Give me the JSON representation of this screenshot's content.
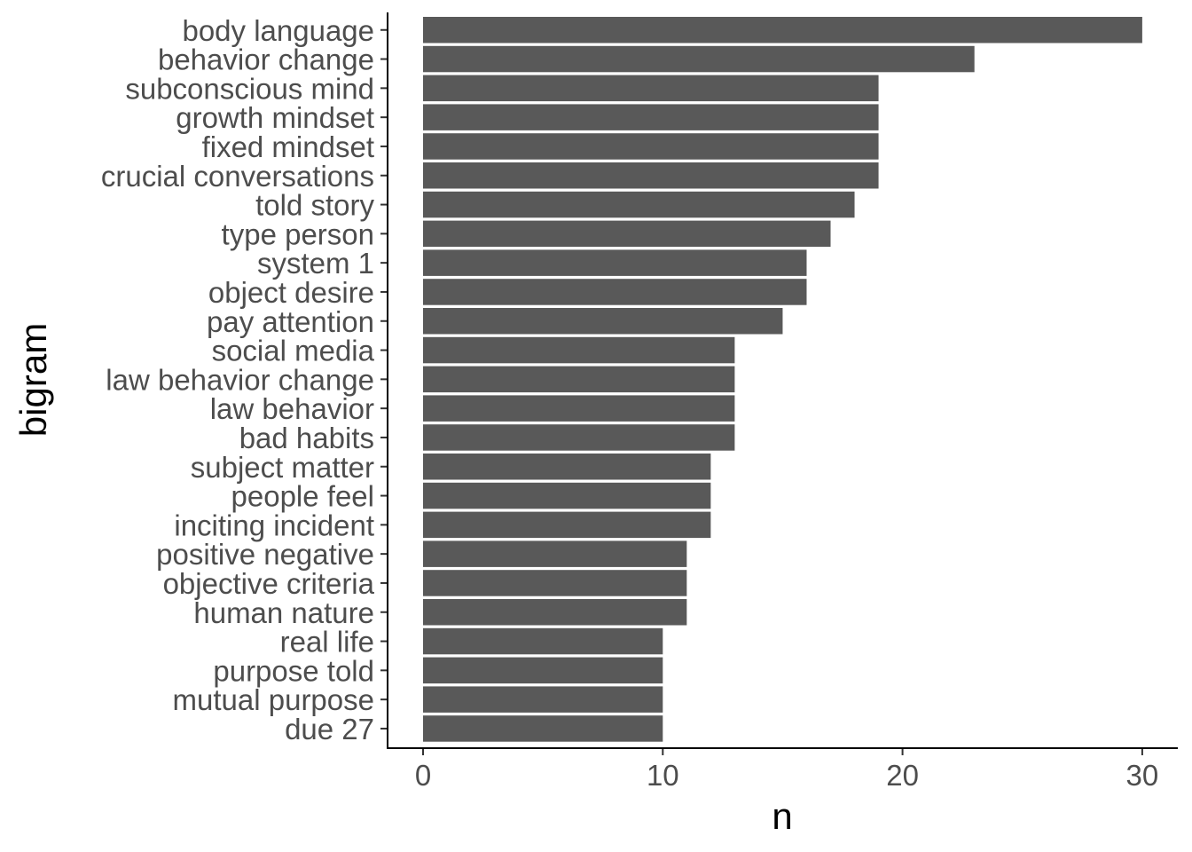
{
  "chart_data": {
    "type": "bar",
    "orientation": "horizontal",
    "xlabel": "n",
    "ylabel": "bigram",
    "xlim": [
      0,
      31.5
    ],
    "x_ticks": [
      0,
      10,
      20,
      30
    ],
    "grid": false,
    "bar_color": "#595959",
    "categories": [
      "body language",
      "behavior change",
      "subconscious mind",
      "growth mindset",
      "fixed mindset",
      "crucial conversations",
      "told story",
      "type person",
      "system 1",
      "object desire",
      "pay attention",
      "social media",
      "law behavior change",
      "law behavior",
      "bad habits",
      "subject matter",
      "people feel",
      "inciting incident",
      "positive negative",
      "objective criteria",
      "human nature",
      "real life",
      "purpose told",
      "mutual purpose",
      "due 27"
    ],
    "values": [
      30,
      23,
      19,
      19,
      19,
      19,
      18,
      17,
      16,
      16,
      15,
      13,
      13,
      13,
      13,
      12,
      12,
      12,
      11,
      11,
      11,
      10,
      10,
      10,
      10
    ]
  }
}
